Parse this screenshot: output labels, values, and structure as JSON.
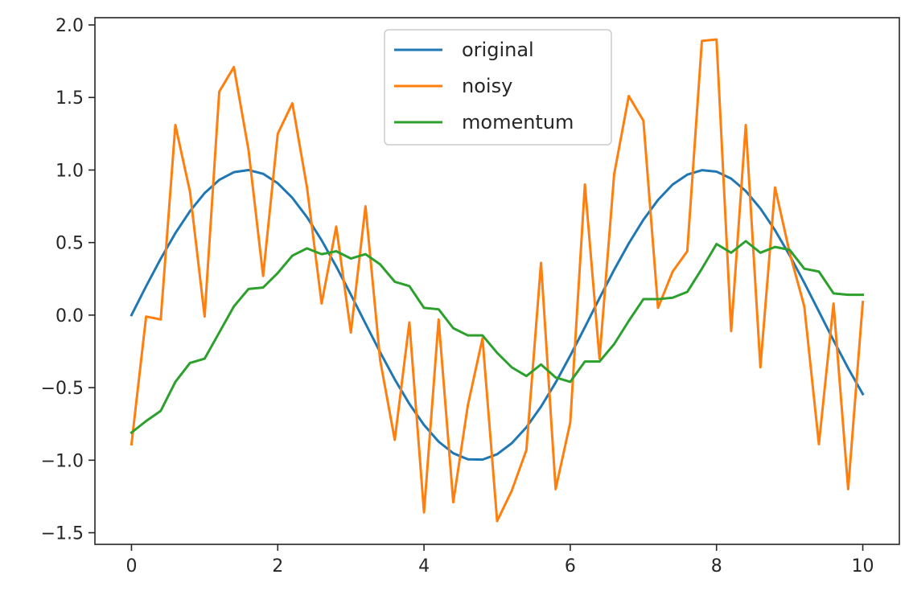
{
  "chart_data": {
    "type": "line",
    "title": "",
    "xlabel": "",
    "ylabel": "",
    "xlim": [
      -0.5,
      10.5
    ],
    "ylim": [
      -1.58,
      2.05
    ],
    "grid": false,
    "legend": "upper-center",
    "xticks": [
      0,
      2,
      4,
      6,
      8,
      10
    ],
    "xtick_labels": [
      "0",
      "2",
      "4",
      "6",
      "8",
      "10"
    ],
    "yticks": [
      -1.5,
      -1.0,
      -0.5,
      0.0,
      0.5,
      1.0,
      1.5,
      2.0
    ],
    "ytick_labels": [
      "−1.5",
      "−1.0",
      "−0.5",
      "0.0",
      "0.5",
      "1.0",
      "1.5",
      "2.0"
    ],
    "x": [
      0.0,
      0.2,
      0.4,
      0.6,
      0.8,
      1.0,
      1.2,
      1.4,
      1.6,
      1.8,
      2.0,
      2.2,
      2.4,
      2.6,
      2.8,
      3.0,
      3.2,
      3.4,
      3.6,
      3.8,
      4.0,
      4.2,
      4.4,
      4.6,
      4.8,
      5.0,
      5.2,
      5.4,
      5.6,
      5.8,
      6.0,
      6.2,
      6.4,
      6.6,
      6.8,
      7.0,
      7.2,
      7.4,
      7.6,
      7.8,
      8.0,
      8.2,
      8.4,
      8.6,
      8.8,
      9.0,
      9.2,
      9.4,
      9.6,
      9.8,
      10.0
    ],
    "series": [
      {
        "name": "original",
        "color": "#1f77b4",
        "values": [
          0.0,
          0.199,
          0.389,
          0.565,
          0.717,
          0.841,
          0.932,
          0.985,
          1.0,
          0.974,
          0.909,
          0.808,
          0.675,
          0.516,
          0.335,
          0.141,
          -0.058,
          -0.256,
          -0.443,
          -0.612,
          -0.757,
          -0.872,
          -0.952,
          -0.994,
          -0.996,
          -0.959,
          -0.883,
          -0.773,
          -0.631,
          -0.465,
          -0.279,
          -0.083,
          0.117,
          0.312,
          0.494,
          0.657,
          0.794,
          0.9,
          0.968,
          0.999,
          0.989,
          0.941,
          0.855,
          0.735,
          0.585,
          0.412,
          0.223,
          0.025,
          -0.174,
          -0.366,
          -0.544
        ]
      },
      {
        "name": "noisy",
        "color": "#ff7f0e",
        "values": [
          -0.89,
          -0.01,
          -0.03,
          1.31,
          0.85,
          -0.01,
          1.54,
          1.71,
          1.14,
          0.27,
          1.25,
          1.46,
          0.88,
          0.08,
          0.61,
          -0.12,
          0.75,
          -0.31,
          -0.86,
          -0.05,
          -1.36,
          -0.03,
          -1.29,
          -0.62,
          -0.16,
          -1.42,
          -1.21,
          -0.93,
          0.36,
          -1.2,
          -0.74,
          0.9,
          -0.3,
          0.97,
          1.51,
          1.34,
          0.05,
          0.3,
          0.44,
          1.89,
          1.9,
          -0.11,
          1.31,
          -0.36,
          0.88,
          0.43,
          0.06,
          -0.89,
          0.08,
          -1.2,
          0.09
        ]
      },
      {
        "name": "momentum",
        "color": "#2ca02c",
        "values": [
          -0.81,
          -0.73,
          -0.66,
          -0.46,
          -0.33,
          -0.3,
          -0.12,
          0.06,
          0.18,
          0.19,
          0.29,
          0.41,
          0.46,
          0.42,
          0.44,
          0.39,
          0.42,
          0.35,
          0.23,
          0.2,
          0.05,
          0.04,
          -0.09,
          -0.14,
          -0.14,
          -0.26,
          -0.36,
          -0.42,
          -0.34,
          -0.43,
          -0.46,
          -0.32,
          -0.32,
          -0.2,
          -0.04,
          0.11,
          0.11,
          0.12,
          0.16,
          0.32,
          0.49,
          0.43,
          0.51,
          0.43,
          0.47,
          0.45,
          0.32,
          0.3,
          0.15,
          0.14,
          0.14
        ]
      }
    ]
  }
}
